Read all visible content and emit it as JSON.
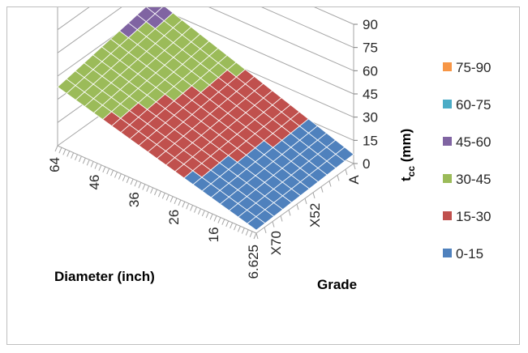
{
  "chart_data": {
    "type": "surface",
    "title": "",
    "legend_position": "right",
    "legend": [
      {
        "label": "75-90",
        "color": "#f79646"
      },
      {
        "label": "60-75",
        "color": "#4bacc6"
      },
      {
        "label": "45-60",
        "color": "#8064a2"
      },
      {
        "label": "30-45",
        "color": "#9bbb59"
      },
      {
        "label": "15-30",
        "color": "#c0504d"
      },
      {
        "label": "0-15",
        "color": "#4f81bd"
      }
    ],
    "x_axis": {
      "label": "Diameter (inch)",
      "ticks": [
        "6.625",
        "16",
        "26",
        "36",
        "46",
        "64"
      ]
    },
    "y_axis": {
      "label": "Grade",
      "ticks": [
        "X70",
        "X52",
        "A"
      ]
    },
    "z_axis": {
      "label_main": "t",
      "label_sub": "cc",
      "label_unit": " (mm)",
      "ticks": [
        "0",
        "15",
        "30",
        "45",
        "60",
        "75",
        "90"
      ],
      "range": [
        0,
        90
      ]
    },
    "surface_corners": [
      {
        "diameter": "6.625",
        "grade": "X70",
        "t_cc": 2
      },
      {
        "diameter": "6.625",
        "grade": "A",
        "t_cc": 6
      },
      {
        "diameter": "64",
        "grade": "X70",
        "t_cc": 38
      },
      {
        "diameter": "64",
        "grade": "A",
        "t_cc": 50
      }
    ]
  }
}
